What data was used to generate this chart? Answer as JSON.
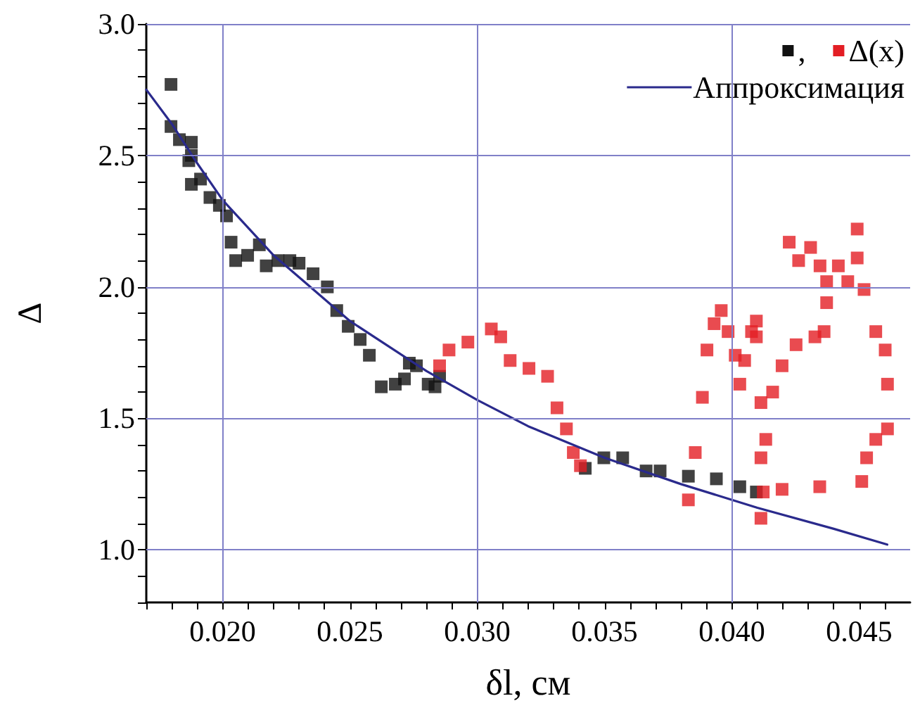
{
  "chart_data": {
    "type": "scatter",
    "xlabel": "δl, см",
    "ylabel": "Δ",
    "xlim": [
      0.017,
      0.047
    ],
    "ylim": [
      0.8,
      3.0
    ],
    "xticks": [
      {
        "value": 0.02,
        "label": "0.020"
      },
      0.025,
      {
        "value": 0.03,
        "label": "0.030"
      },
      0.035,
      {
        "value": 0.04,
        "label": "0.040"
      },
      0.045
    ],
    "yticks": [
      {
        "value": 1,
        "label": "1.0"
      },
      1.5,
      {
        "value": 2,
        "label": "2.0"
      },
      2.5,
      {
        "value": 3,
        "label": "3.0"
      }
    ],
    "grid": true,
    "legend": "top right",
    "marker": "square",
    "series": [
      {
        "name": ",",
        "color": "#111111",
        "x": [
          0.01797,
          0.01797,
          0.0183,
          0.01877,
          0.01877,
          0.01867,
          0.01877,
          0.01913,
          0.0195,
          0.01987,
          0.02015,
          0.02033,
          0.02051,
          0.02098,
          0.02144,
          0.02171,
          0.02217,
          0.02264,
          0.023,
          0.02355,
          0.02411,
          0.02448,
          0.02493,
          0.0254,
          0.02576,
          0.02623,
          0.02678,
          0.02714,
          0.02733,
          0.02761,
          0.02807,
          0.02834,
          0.02852,
          0.03424,
          0.03497,
          0.03571,
          0.03663,
          0.03718,
          0.03829,
          0.03939,
          0.04031,
          0.04096
        ],
        "values": [
          2.77,
          2.61,
          2.56,
          2.55,
          2.5,
          2.48,
          2.39,
          2.41,
          2.34,
          2.31,
          2.27,
          2.17,
          2.1,
          2.12,
          2.16,
          2.08,
          2.1,
          2.1,
          2.09,
          2.05,
          2.0,
          1.91,
          1.85,
          1.8,
          1.74,
          1.62,
          1.63,
          1.65,
          1.71,
          1.7,
          1.63,
          1.62,
          1.66,
          1.31,
          1.35,
          1.35,
          1.3,
          1.3,
          1.28,
          1.27,
          1.24,
          1.22
        ]
      },
      {
        "name": "Δ(x)",
        "color": "#e31e24",
        "x": [
          0.02852,
          0.02889,
          0.02963,
          0.03055,
          0.03092,
          0.03129,
          0.03203,
          0.03276,
          0.03313,
          0.0335,
          0.03377,
          0.03405,
          0.03829,
          0.03856,
          0.03884,
          0.03902,
          0.0393,
          0.03958,
          0.03985,
          0.04013,
          0.04031,
          0.0405,
          0.04077,
          0.04096,
          0.04096,
          0.04114,
          0.04114,
          0.04114,
          0.04133,
          0.0416,
          0.04197,
          0.04252,
          0.04326,
          0.04362,
          0.04372,
          0.04372,
          0.04346,
          0.04309,
          0.04262,
          0.04225,
          0.04418,
          0.04455,
          0.04492,
          0.04492,
          0.04519,
          0.04565,
          0.04602,
          0.04611,
          0.04611,
          0.04565,
          0.04529,
          0.0451,
          0.04345,
          0.04197,
          0.04123
        ],
        "values": [
          1.7,
          1.76,
          1.79,
          1.84,
          1.81,
          1.72,
          1.69,
          1.66,
          1.54,
          1.46,
          1.37,
          1.32,
          1.19,
          1.37,
          1.58,
          1.76,
          1.86,
          1.91,
          1.83,
          1.74,
          1.63,
          1.72,
          1.83,
          1.87,
          1.81,
          1.56,
          1.35,
          1.12,
          1.42,
          1.6,
          1.7,
          1.78,
          1.81,
          1.83,
          1.94,
          2.02,
          2.08,
          2.15,
          2.1,
          2.17,
          2.08,
          2.02,
          2.11,
          2.22,
          1.99,
          1.83,
          1.76,
          1.63,
          1.46,
          1.42,
          1.35,
          1.26,
          1.24,
          1.23,
          1.22
        ]
      },
      {
        "name": "Аппроксимация",
        "type": "line",
        "marker": "none",
        "color": "#2a2a8c",
        "x": [
          0.017,
          0.018,
          0.019,
          0.02,
          0.022,
          0.025,
          0.028,
          0.03,
          0.032,
          0.035,
          0.038,
          0.041,
          0.044,
          0.0461
        ],
        "values": [
          2.75,
          2.62,
          2.47,
          2.33,
          2.12,
          1.87,
          1.68,
          1.57,
          1.47,
          1.35,
          1.25,
          1.16,
          1.08,
          1.02
        ]
      }
    ]
  }
}
